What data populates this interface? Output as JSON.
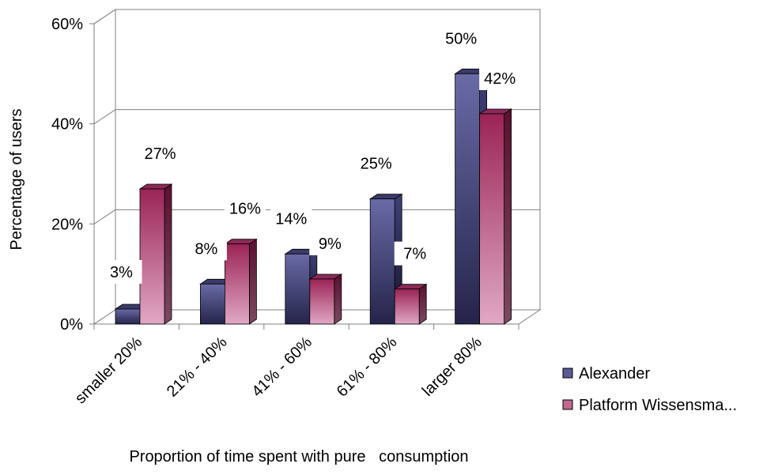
{
  "chart_data": {
    "type": "bar",
    "title": "",
    "xlabel": "Proportion of time spent with pure   consumption",
    "ylabel": "Percentage of users",
    "ylim": [
      0,
      60
    ],
    "yticks": [
      0,
      20,
      40,
      60
    ],
    "ytick_labels": [
      "0%",
      "20%",
      "40%",
      "60%"
    ],
    "grid": true,
    "three_d": true,
    "legend_position": "right",
    "categories": [
      "smaller 20%",
      "21% - 40%",
      "41% - 60%",
      "61% - 80%",
      "larger 80%"
    ],
    "series": [
      {
        "name": "Alexander",
        "color": "#3c3c78",
        "values": [
          3,
          8,
          14,
          25,
          50
        ],
        "labels": [
          "3%",
          "8%",
          "14%",
          "25%",
          "50%"
        ]
      },
      {
        "name": "Platform Wissensma...",
        "color": "#a0285a",
        "values": [
          27,
          16,
          9,
          7,
          42
        ],
        "labels": [
          "27%",
          "16%",
          "9%",
          "7%",
          "42%"
        ]
      }
    ]
  }
}
